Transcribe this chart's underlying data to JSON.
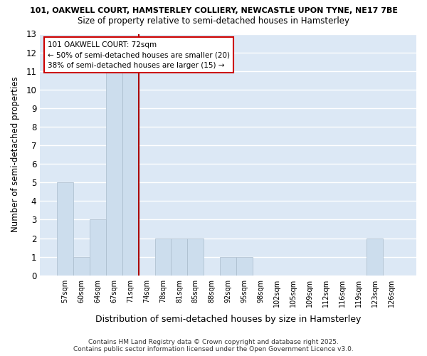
{
  "title_line1": "101, OAKWELL COURT, HAMSTERLEY COLLIERY, NEWCASTLE UPON TYNE, NE17 7BE",
  "title_line2": "Size of property relative to semi-detached houses in Hamsterley",
  "xlabel": "Distribution of semi-detached houses by size in Hamsterley",
  "ylabel": "Number of semi-detached properties",
  "categories": [
    "57sqm",
    "60sqm",
    "64sqm",
    "67sqm",
    "71sqm",
    "74sqm",
    "78sqm",
    "81sqm",
    "85sqm",
    "88sqm",
    "92sqm",
    "95sqm",
    "98sqm",
    "102sqm",
    "105sqm",
    "109sqm",
    "112sqm",
    "116sqm",
    "119sqm",
    "123sqm",
    "126sqm"
  ],
  "values": [
    5,
    1,
    3,
    11,
    11,
    0,
    2,
    2,
    2,
    0,
    1,
    1,
    0,
    0,
    0,
    0,
    0,
    0,
    0,
    2,
    0
  ],
  "bar_color": "#ccdded",
  "bar_edgecolor": "#aabccc",
  "red_line_x": 4.5,
  "annotation_line1": "101 OAKWELL COURT: 72sqm",
  "annotation_line2": "← 50% of semi-detached houses are smaller (20)",
  "annotation_line3": "38% of semi-detached houses are larger (15) →",
  "ylim": [
    0,
    13
  ],
  "yticks": [
    0,
    1,
    2,
    3,
    4,
    5,
    6,
    7,
    8,
    9,
    10,
    11,
    12,
    13
  ],
  "plot_bg_color": "#dce8f5",
  "figure_bg_color": "#ffffff",
  "grid_color": "#ffffff",
  "red_line_color": "#aa0000",
  "annotation_box_facecolor": "#ffffff",
  "annotation_box_edgecolor": "#cc0000",
  "footer_line1": "Contains HM Land Registry data © Crown copyright and database right 2025.",
  "footer_line2": "Contains public sector information licensed under the Open Government Licence v3.0."
}
